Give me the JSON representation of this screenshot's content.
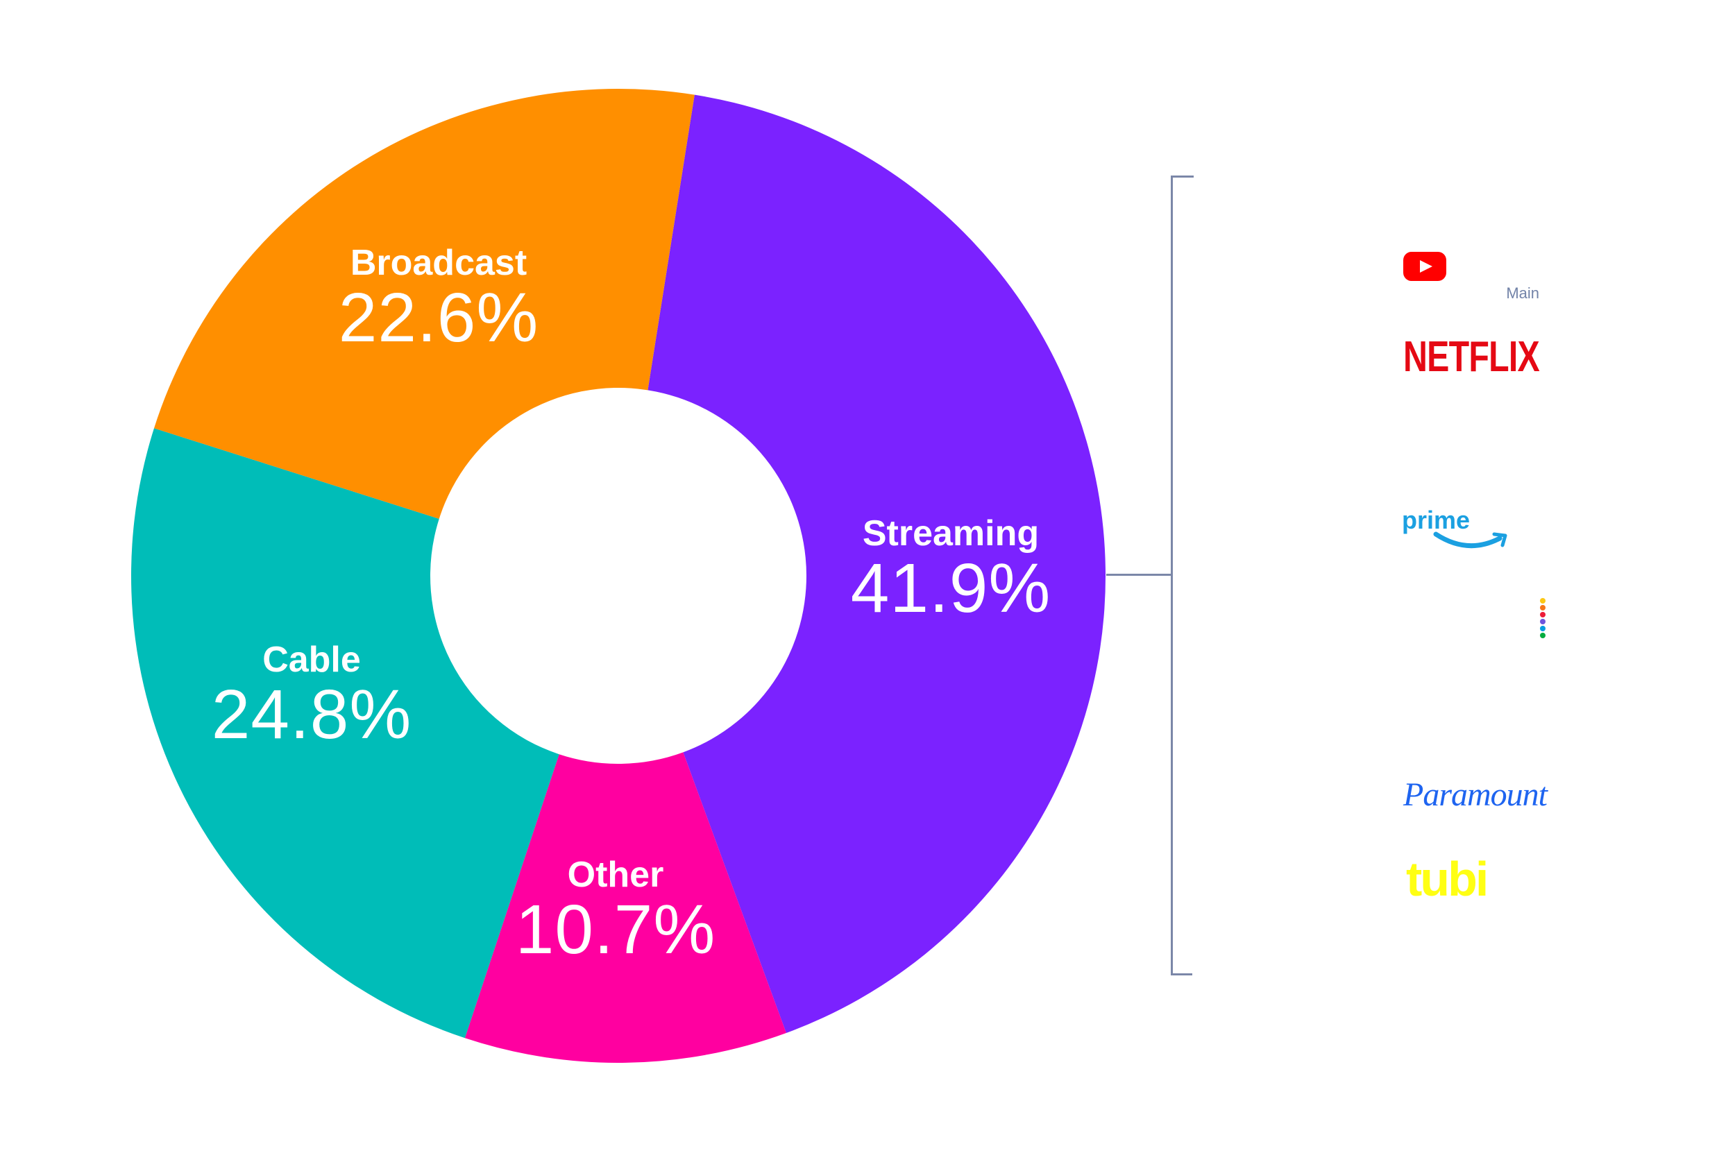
{
  "chart_data": {
    "type": "pie",
    "subtype": "donut",
    "title": "",
    "categories": [
      "Streaming",
      "Other",
      "Cable",
      "Broadcast"
    ],
    "values": [
      41.9,
      10.7,
      24.8,
      22.6
    ],
    "unit": "%",
    "colors": {
      "Streaming": "#7b22ff",
      "Other": "#ff00a0",
      "Cable": "#00bdb8",
      "Broadcast": "#ff8f00"
    },
    "start_angle_deg": 9,
    "direction": "clockwise",
    "annotations": {
      "bracket_target": "Streaming",
      "bracket_note": "Main",
      "streaming_brands": [
        "YouTube",
        "Netflix",
        "Prime Video",
        "Peacock",
        "Paramount",
        "Tubi"
      ]
    },
    "legend": "none (labels inside segments)"
  },
  "segments": [
    {
      "name": "Streaming",
      "pct_label": "41.9%"
    },
    {
      "name": "Other",
      "pct_label": "10.7%"
    },
    {
      "name": "Cable",
      "pct_label": "24.8%"
    },
    {
      "name": "Broadcast",
      "pct_label": "22.6%"
    }
  ],
  "bracket": {
    "color": "#7b87a8",
    "note": "Main"
  },
  "logos": {
    "youtube": {
      "name": "YouTube",
      "color": "#ff0000"
    },
    "netflix": {
      "text": "NETFLIX",
      "color": "#e50914"
    },
    "prime": {
      "text": "prime",
      "color": "#1ba0e1"
    },
    "peacock": {
      "dot_colors": [
        "#fcc814",
        "#f5761a",
        "#ed1c39",
        "#6e55dc",
        "#069de0",
        "#05ac3f"
      ]
    },
    "paramount": {
      "text": "Paramount",
      "color": "#1e64f0"
    },
    "tubi": {
      "text": "tubi",
      "color": "#ffff13"
    }
  }
}
